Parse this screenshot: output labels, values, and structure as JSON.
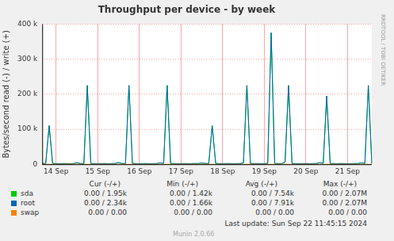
{
  "chart_data": {
    "type": "line",
    "title": "Throughput per device - by week",
    "y_label": "Bytes/second read (-) / write (+)",
    "side_text": "RRDTOOL / TOBI OETIKER",
    "categories": [
      null,
      null,
      null,
      null,
      "14 Sep",
      null,
      null,
      null,
      null,
      null,
      null,
      null,
      null,
      null,
      null,
      null,
      "15 Sep",
      null,
      null,
      null,
      null,
      null,
      null,
      null,
      null,
      null,
      null,
      null,
      "16 Sep",
      null,
      null,
      null,
      null,
      null,
      null,
      null,
      null,
      null,
      null,
      null,
      "17 Sep",
      null,
      null,
      null,
      null,
      null,
      null,
      null,
      null,
      null,
      null,
      null,
      "18 Sep",
      null,
      null,
      null,
      null,
      null,
      null,
      null,
      null,
      null,
      null,
      null,
      "19 Sep",
      null,
      null,
      null,
      null,
      null,
      null,
      null,
      null,
      null,
      null,
      null,
      "20 Sep",
      null,
      null,
      null,
      null,
      null,
      null,
      null,
      null,
      null,
      null,
      null,
      "21 Sep",
      null,
      null,
      null,
      null,
      null,
      null,
      null
    ],
    "series": [
      {
        "name": "sda",
        "color": "#00cc00",
        "stats": [
          "0.00 / 1.95k",
          "0.00 / 1.42k",
          "0.00 / 7.54k",
          "0.00 / 2.07M"
        ],
        "values": [
          2000,
          1800,
          110000,
          2300,
          1700,
          1600,
          1800,
          1700,
          1500,
          1700,
          4200,
          1900,
          1800,
          225000,
          2100,
          1700,
          1600,
          1700,
          1800,
          1500,
          1700,
          1900,
          4700,
          2000,
          1800,
          225000,
          2200,
          1700,
          1600,
          1700,
          1800,
          1500,
          1700,
          1800,
          3700,
          2300,
          225000,
          2100,
          1700,
          1600,
          1700,
          1800,
          1500,
          1700,
          1900,
          1800,
          3200,
          2000,
          1900,
          110000,
          2100,
          1700,
          1600,
          1700,
          1800,
          1500,
          1700,
          1800,
          3500,
          225000,
          2000,
          1700,
          1800,
          1600,
          1700,
          2300,
          375000,
          2000,
          1800,
          1700,
          5700,
          225000,
          2100,
          1700,
          1600,
          1700,
          1800,
          1500,
          1700,
          1900,
          4200,
          2300,
          195000,
          2000,
          1700,
          1600,
          1800,
          1700,
          1500,
          1700,
          1800,
          1900,
          3700,
          2200,
          225000,
          2000
        ]
      },
      {
        "name": "root",
        "color": "#0066b3",
        "stats": [
          "0.00 / 2.34k",
          "0.00 / 1.66k",
          "0.00 / 7.91k",
          "0.00 / 2.07M"
        ],
        "values": [
          2300,
          2100,
          110000,
          2600,
          2000,
          1900,
          2100,
          2000,
          1800,
          2000,
          4500,
          2200,
          2100,
          225000,
          2400,
          2000,
          1900,
          2000,
          2100,
          1800,
          2000,
          2200,
          5000,
          2300,
          2100,
          225000,
          2500,
          2000,
          1900,
          2000,
          2100,
          1800,
          2000,
          2100,
          4000,
          2600,
          225000,
          2400,
          2000,
          1900,
          2000,
          2100,
          1800,
          2000,
          2200,
          2100,
          3500,
          2300,
          2200,
          110000,
          2400,
          2000,
          1900,
          2000,
          2100,
          1800,
          2000,
          2100,
          3800,
          225000,
          2300,
          2000,
          2100,
          1900,
          2000,
          2600,
          375000,
          2300,
          2100,
          2000,
          6000,
          225000,
          2400,
          2000,
          1900,
          2000,
          2100,
          1800,
          2000,
          2200,
          4500,
          2600,
          195000,
          2300,
          2000,
          1900,
          2100,
          2000,
          1800,
          2000,
          2100,
          2200,
          4000,
          2500,
          225000,
          2300
        ]
      },
      {
        "name": "swap",
        "color": "#ff8000",
        "stats": [
          "0.00 / 0.00",
          "0.00 / 0.00",
          "0.00 / 0.00",
          "0.00 / 0.00"
        ],
        "values": [
          0,
          0,
          0,
          0,
          0,
          0,
          0,
          0,
          0,
          0,
          0,
          0,
          0,
          0,
          0,
          0,
          0,
          0,
          0,
          0,
          0,
          0,
          0,
          0,
          0,
          0,
          0,
          0,
          0,
          0,
          0,
          0,
          0,
          0,
          0,
          0,
          0,
          0,
          0,
          0,
          0,
          0,
          0,
          0,
          0,
          0,
          0,
          0,
          0,
          0,
          0,
          0,
          0,
          0,
          0,
          0,
          0,
          0,
          0,
          0,
          0,
          0,
          0,
          0,
          0,
          0,
          0,
          0,
          0,
          0,
          0,
          0,
          0,
          0,
          0,
          0,
          0,
          0,
          0,
          0,
          0,
          0,
          0,
          0,
          0,
          0,
          0,
          0,
          0,
          0,
          0,
          0,
          0,
          0,
          0,
          0
        ]
      }
    ],
    "stats_columns": [
      "Cur (-/+)",
      "Min (-/+)",
      "Avg (-/+)",
      "Max (-/+)"
    ],
    "last_update": "Last update: Sun Sep 22 11:45:15 2024",
    "footer": "Munin 2.0.66",
    "ylim": [
      0,
      400000
    ],
    "yticks": [
      0,
      {
        "value": 100000,
        "label": "100 k"
      },
      {
        "value": 200000,
        "label": "200 k"
      },
      {
        "value": 300000,
        "label": "300 k"
      },
      {
        "value": 400000,
        "label": "400 k"
      }
    ],
    "grid": true
  }
}
